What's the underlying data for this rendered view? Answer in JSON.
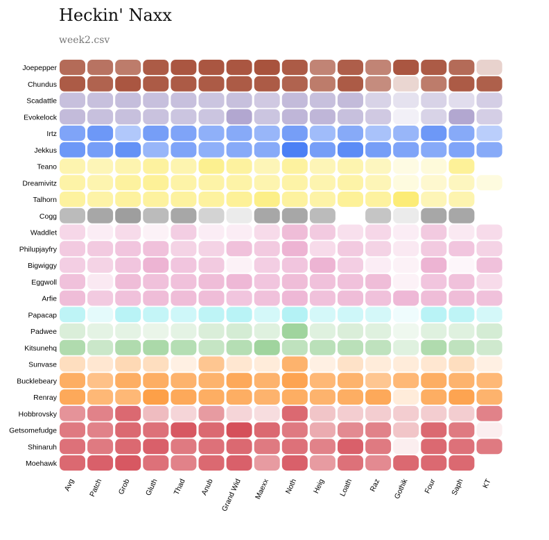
{
  "title": "Heckin' Naxx",
  "subtitle": "week2.csv",
  "chart_data": {
    "type": "heatmap",
    "columns": [
      "Avg",
      "Patch",
      "Grob",
      "Gluth",
      "Thad",
      "Anub",
      "Grand Wid",
      "Maexx",
      "Noth",
      "Heig",
      "Loath",
      "Raz",
      "Gothik",
      "Four",
      "Saph",
      "KT"
    ],
    "rows": [
      {
        "name": "Joepepper",
        "color": "#a8533d",
        "values": [
          0.85,
          0.8,
          0.75,
          0.95,
          0.98,
          0.98,
          0.98,
          1.0,
          0.95,
          0.7,
          0.93,
          0.7,
          0.98,
          0.95,
          0.85,
          0.22
        ]
      },
      {
        "name": "Chundus",
        "color": "#a8533d",
        "values": [
          0.95,
          0.9,
          0.98,
          0.95,
          0.95,
          0.95,
          0.95,
          0.95,
          0.9,
          0.75,
          0.95,
          0.65,
          0.2,
          0.75,
          0.95,
          0.92
        ]
      },
      {
        "name": "Scadattle",
        "color": "#a599c8",
        "values": [
          0.6,
          0.6,
          0.62,
          0.6,
          0.6,
          0.55,
          0.6,
          0.5,
          0.65,
          0.6,
          0.65,
          0.4,
          0.25,
          0.4,
          0.3,
          0.45
        ]
      },
      {
        "name": "Evokelock",
        "color": "#a599c8",
        "values": [
          0.65,
          0.6,
          0.6,
          0.58,
          0.55,
          0.55,
          0.85,
          0.55,
          0.7,
          0.7,
          0.6,
          0.5,
          0.1,
          0.4,
          0.85,
          0.45
        ]
      },
      {
        "name": "Irtz",
        "color": "#4b80f5",
        "values": [
          0.7,
          0.8,
          0.4,
          0.75,
          0.7,
          0.6,
          0.65,
          0.55,
          0.75,
          0.5,
          0.65,
          0.45,
          0.55,
          0.8,
          0.65,
          0.35
        ]
      },
      {
        "name": "Jekkus",
        "color": "#4b80f5",
        "values": [
          0.8,
          0.75,
          0.85,
          0.55,
          0.7,
          0.6,
          0.65,
          0.65,
          1.0,
          0.75,
          0.9,
          0.75,
          0.7,
          0.65,
          0.7,
          0.65
        ]
      },
      {
        "name": "Teano",
        "color": "#fbe858",
        "values": [
          0.45,
          0.4,
          0.45,
          0.55,
          0.45,
          0.65,
          0.55,
          0.4,
          0.55,
          0.4,
          0.45,
          0.35,
          0.12,
          0.18,
          0.6,
          0.0
        ]
      },
      {
        "name": "Dreamivitz",
        "color": "#fbe858",
        "values": [
          0.5,
          0.45,
          0.55,
          0.6,
          0.5,
          0.5,
          0.5,
          0.45,
          0.5,
          0.45,
          0.5,
          0.4,
          0.15,
          0.25,
          0.35,
          0.15
        ]
      },
      {
        "name": "Talhorn",
        "color": "#fbe858",
        "values": [
          0.55,
          0.5,
          0.55,
          0.55,
          0.55,
          0.55,
          0.6,
          0.7,
          0.55,
          0.5,
          0.6,
          0.55,
          0.8,
          0.4,
          0.45,
          0.0
        ]
      },
      {
        "name": "Cogg",
        "color": "#999999",
        "values": [
          0.65,
          0.85,
          0.95,
          0.65,
          0.85,
          0.4,
          0.15,
          0.85,
          0.85,
          0.65,
          0.0,
          0.55,
          0.15,
          0.85,
          0.85,
          0.0
        ]
      },
      {
        "name": "Waddlet",
        "color": "#e9a2c9",
        "values": [
          0.4,
          0.15,
          0.35,
          0.1,
          0.5,
          0.15,
          0.15,
          0.35,
          0.7,
          0.55,
          0.3,
          0.4,
          0.15,
          0.55,
          0.2,
          0.35
        ]
      },
      {
        "name": "Philupjayfry",
        "color": "#e9a2c9",
        "values": [
          0.55,
          0.55,
          0.6,
          0.65,
          0.45,
          0.45,
          0.65,
          0.55,
          0.8,
          0.35,
          0.55,
          0.45,
          0.2,
          0.55,
          0.6,
          0.45
        ]
      },
      {
        "name": "Bigwiggy",
        "color": "#e9a2c9",
        "values": [
          0.5,
          0.45,
          0.6,
          0.8,
          0.6,
          0.55,
          0.1,
          0.5,
          0.6,
          0.8,
          0.5,
          0.15,
          0.1,
          0.8,
          0.05,
          0.65
        ]
      },
      {
        "name": "Eggwoll",
        "color": "#e9a2c9",
        "values": [
          0.65,
          0.2,
          0.7,
          0.65,
          0.65,
          0.7,
          0.75,
          0.6,
          0.7,
          0.65,
          0.65,
          0.7,
          0.1,
          0.6,
          0.65,
          0.35
        ]
      },
      {
        "name": "Arfie",
        "color": "#e9a2c9",
        "values": [
          0.7,
          0.55,
          0.65,
          0.7,
          0.7,
          0.7,
          0.6,
          0.65,
          0.75,
          0.65,
          0.7,
          0.65,
          0.75,
          0.7,
          0.7,
          0.65
        ]
      },
      {
        "name": "Papacap",
        "color": "#8eecf0",
        "values": [
          0.55,
          0.2,
          0.6,
          0.5,
          0.4,
          0.55,
          0.6,
          0.35,
          0.65,
          0.35,
          0.4,
          0.35,
          0.1,
          0.6,
          0.55,
          0.35
        ]
      },
      {
        "name": "Padwee",
        "color": "#90cd8e",
        "values": [
          0.3,
          0.2,
          0.2,
          0.15,
          0.2,
          0.3,
          0.35,
          0.25,
          0.85,
          0.25,
          0.3,
          0.25,
          0.1,
          0.25,
          0.25,
          0.35
        ]
      },
      {
        "name": "Kitsunehq",
        "color": "#90cd8e",
        "values": [
          0.7,
          0.45,
          0.7,
          0.75,
          0.65,
          0.5,
          0.65,
          0.85,
          0.55,
          0.6,
          0.6,
          0.55,
          0.25,
          0.7,
          0.55,
          0.4
        ]
      },
      {
        "name": "Sunvase",
        "color": "#fd9b3f",
        "values": [
          0.3,
          0.2,
          0.35,
          0.3,
          0.1,
          0.55,
          0.2,
          0.15,
          0.75,
          0.1,
          0.25,
          0.15,
          0.15,
          0.2,
          0.3,
          0.1
        ]
      },
      {
        "name": "Bucklebeary",
        "color": "#fd9b3f",
        "values": [
          0.8,
          0.6,
          0.8,
          0.8,
          0.75,
          0.75,
          0.85,
          0.75,
          0.9,
          0.7,
          0.75,
          0.55,
          0.7,
          0.8,
          0.75,
          0.7
        ]
      },
      {
        "name": "Renray",
        "color": "#fd9b3f",
        "values": [
          0.85,
          0.7,
          0.7,
          0.95,
          0.85,
          0.8,
          0.8,
          0.75,
          0.8,
          0.75,
          0.8,
          0.85,
          0.15,
          0.8,
          0.9,
          0.75
        ]
      },
      {
        "name": "Hobbrovsky",
        "color": "#d5505a",
        "values": [
          0.6,
          0.7,
          0.85,
          0.35,
          0.2,
          0.55,
          0.2,
          0.15,
          0.85,
          0.3,
          0.25,
          0.25,
          0.25,
          0.25,
          0.25,
          0.7
        ]
      },
      {
        "name": "Getsomefudge",
        "color": "#d5505a",
        "values": [
          0.75,
          0.7,
          0.85,
          0.8,
          0.95,
          0.85,
          1.0,
          0.85,
          0.75,
          0.45,
          0.65,
          0.7,
          0.3,
          0.85,
          0.75,
          0.05
        ]
      },
      {
        "name": "Shinaruh",
        "color": "#d5505a",
        "values": [
          0.8,
          0.75,
          0.85,
          0.9,
          0.75,
          0.8,
          0.85,
          0.75,
          0.8,
          0.7,
          0.9,
          0.75,
          0.05,
          0.85,
          0.8,
          0.75
        ]
      },
      {
        "name": "Moehawk",
        "color": "#d5505a",
        "values": [
          0.85,
          0.9,
          0.95,
          0.8,
          0.7,
          0.85,
          0.9,
          0.55,
          0.9,
          0.55,
          0.8,
          0.65,
          0.85,
          0.85,
          0.85,
          0.0
        ]
      }
    ]
  }
}
